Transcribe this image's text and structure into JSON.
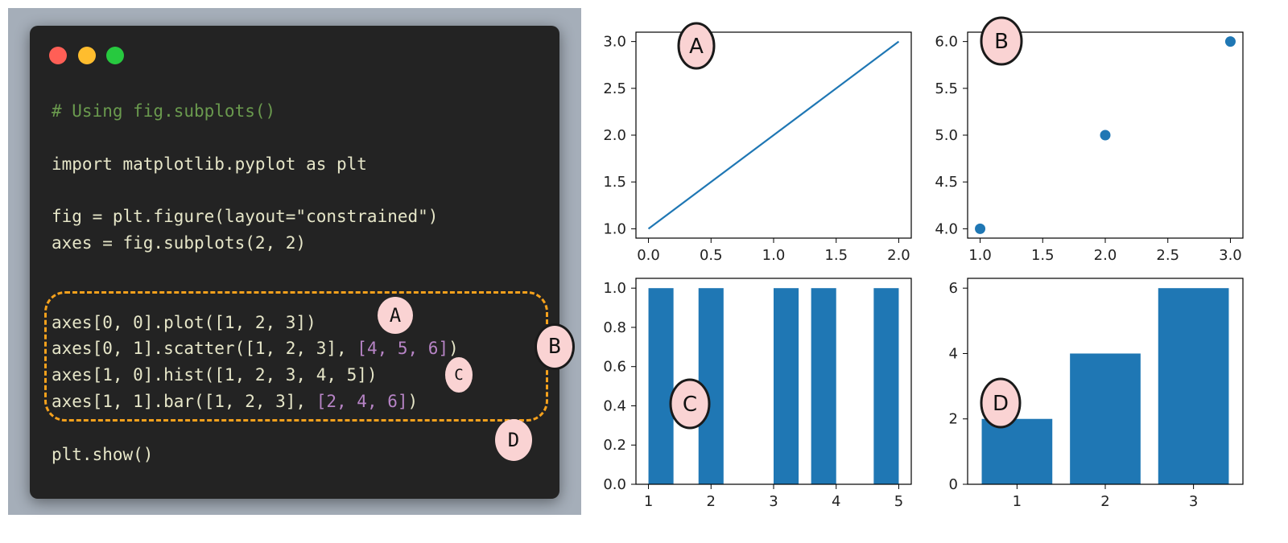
{
  "colors": {
    "accent": "#1f77b4",
    "code_bg": "#232323",
    "dot_red": "#ff5f56",
    "dot_yellow": "#ffbd2e",
    "dot_green": "#27c93f",
    "highlight": "#f5a11c",
    "callout_fill": "#fad3d3"
  },
  "code": {
    "comment": "# Using fig.subplots()",
    "import_line": "import matplotlib.pyplot as plt",
    "fig_line": "fig = plt.figure(layout=\"constrained\")",
    "axes_line": "axes = fig.subplots(2, 2)",
    "plot_line": "axes[0, 0].plot([1, 2, 3])",
    "scatter_prefix": "axes[0, 1].scatter([1, 2, 3], ",
    "scatter_arg": "[4, 5, 6]",
    "scatter_suffix": ")",
    "hist_line": "axes[1, 0].hist([1, 2, 3, 4, 5])",
    "bar_prefix": "axes[1, 1].bar([1, 2, 3], ",
    "bar_arg": "[2, 4, 6]",
    "bar_suffix": ")",
    "show_line": "plt.show()"
  },
  "callouts": {
    "a": "A",
    "b": "B",
    "c": "C",
    "d": "D"
  },
  "chart_data": [
    {
      "type": "line",
      "x": [
        0,
        1,
        2
      ],
      "y": [
        1,
        2,
        3
      ],
      "xlim": [
        -0.1,
        2.1
      ],
      "ylim": [
        0.9,
        3.1
      ],
      "xticks": [
        "0.0",
        "0.5",
        "1.0",
        "1.5",
        "2.0"
      ],
      "yticks": [
        "1.0",
        "1.5",
        "2.0",
        "2.5",
        "3.0"
      ],
      "annotation": "A",
      "title": "",
      "xlabel": "",
      "ylabel": ""
    },
    {
      "type": "scatter",
      "x": [
        1,
        2,
        3
      ],
      "y": [
        4,
        5,
        6
      ],
      "xlim": [
        0.9,
        3.1
      ],
      "ylim": [
        3.9,
        6.1
      ],
      "xticks": [
        "1.0",
        "1.5",
        "2.0",
        "2.5",
        "3.0"
      ],
      "yticks": [
        "4.0",
        "4.5",
        "5.0",
        "5.5",
        "6.0"
      ],
      "annotation": "B",
      "title": "",
      "xlabel": "",
      "ylabel": ""
    },
    {
      "type": "bar",
      "note": "histogram of [1, 2, 3, 4, 5] with 10 bins",
      "bins": [
        {
          "start": 1.0,
          "end": 1.4,
          "count": 1
        },
        {
          "start": 1.8,
          "end": 2.2,
          "count": 1
        },
        {
          "start": 3.0,
          "end": 3.4,
          "count": 1
        },
        {
          "start": 3.6,
          "end": 4.0,
          "count": 1
        },
        {
          "start": 4.6,
          "end": 5.0,
          "count": 1
        }
      ],
      "xlim": [
        0.8,
        5.2
      ],
      "ylim": [
        0,
        1.05
      ],
      "xticks": [
        "1",
        "2",
        "3",
        "4",
        "5"
      ],
      "yticks": [
        "0.0",
        "0.2",
        "0.4",
        "0.6",
        "0.8",
        "1.0"
      ],
      "annotation": "C",
      "title": "",
      "xlabel": "",
      "ylabel": ""
    },
    {
      "type": "bar",
      "categories": [
        "1",
        "2",
        "3"
      ],
      "x": [
        1,
        2,
        3
      ],
      "values": [
        2,
        4,
        6
      ],
      "xlim": [
        0.44,
        3.56
      ],
      "ylim": [
        0,
        6.3
      ],
      "xticks": [
        "1",
        "2",
        "3"
      ],
      "yticks": [
        "0",
        "2",
        "4",
        "6"
      ],
      "annotation": "D",
      "title": "",
      "xlabel": "",
      "ylabel": ""
    }
  ]
}
